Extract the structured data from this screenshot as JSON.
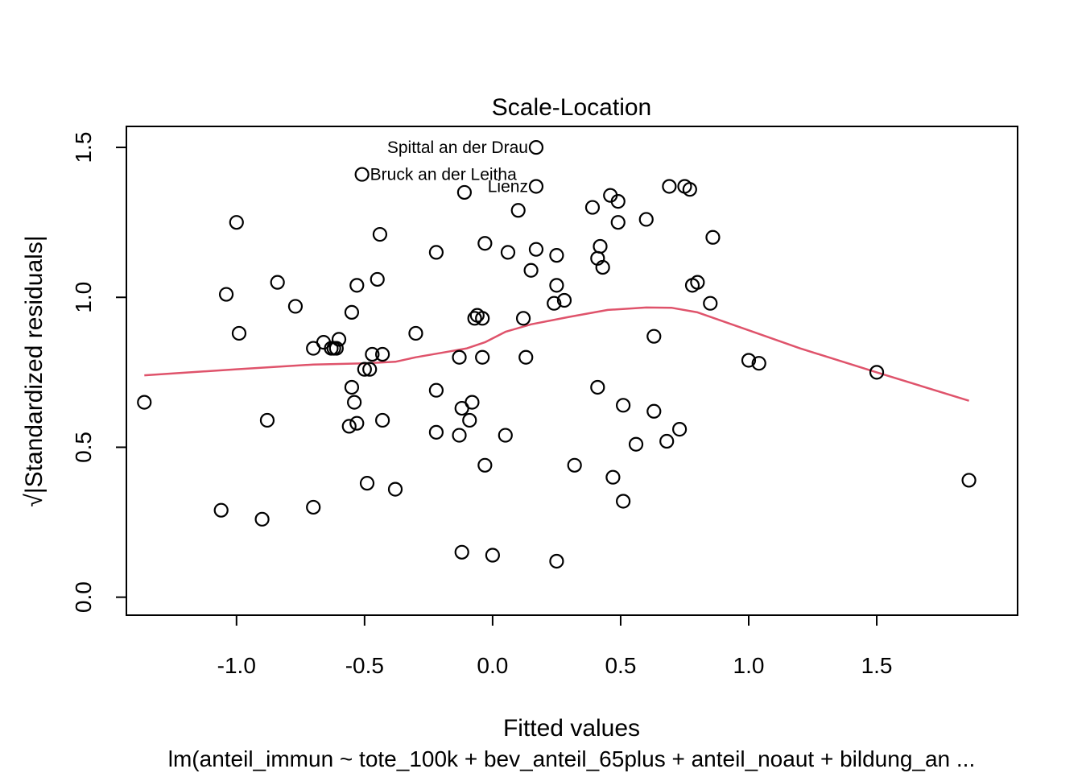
{
  "chart_data": {
    "type": "scatter",
    "title": "Scale-Location",
    "xlabel": "Fitted values",
    "ylabel": "√|Standardized residuals|",
    "subtitle": "lm(anteil_immun ~ tote_100k + bev_anteil_65plus + anteil_noaut + bildung_an ...",
    "xlim": [
      -1.43,
      2.05
    ],
    "ylim": [
      -0.06,
      1.57
    ],
    "xticks": [
      -1.0,
      -0.5,
      0.0,
      0.5,
      1.0,
      1.5
    ],
    "xtick_labels": [
      "-1.0",
      "-0.5",
      "0.0",
      "0.5",
      "1.0",
      "1.5"
    ],
    "yticks": [
      0.0,
      0.5,
      1.0,
      1.5
    ],
    "ytick_labels": [
      "0.0",
      "0.5",
      "1.0",
      "1.5"
    ],
    "grid": false,
    "points": [
      {
        "x": -1.36,
        "y": 0.65
      },
      {
        "x": -1.06,
        "y": 0.29
      },
      {
        "x": -1.04,
        "y": 1.01
      },
      {
        "x": -1.0,
        "y": 1.25
      },
      {
        "x": -0.99,
        "y": 0.88
      },
      {
        "x": -0.9,
        "y": 0.26
      },
      {
        "x": -0.88,
        "y": 0.59
      },
      {
        "x": -0.84,
        "y": 1.05
      },
      {
        "x": -0.77,
        "y": 0.97
      },
      {
        "x": -0.7,
        "y": 0.83
      },
      {
        "x": -0.7,
        "y": 0.3
      },
      {
        "x": -0.66,
        "y": 0.85
      },
      {
        "x": -0.63,
        "y": 0.83
      },
      {
        "x": -0.62,
        "y": 0.83
      },
      {
        "x": -0.61,
        "y": 0.83
      },
      {
        "x": -0.6,
        "y": 0.86
      },
      {
        "x": -0.56,
        "y": 0.57
      },
      {
        "x": -0.55,
        "y": 0.95
      },
      {
        "x": -0.55,
        "y": 0.7
      },
      {
        "x": -0.54,
        "y": 0.65
      },
      {
        "x": -0.53,
        "y": 0.58
      },
      {
        "x": -0.53,
        "y": 1.04
      },
      {
        "x": -0.51,
        "y": 1.41
      },
      {
        "x": -0.5,
        "y": 0.76
      },
      {
        "x": -0.49,
        "y": 0.38
      },
      {
        "x": -0.48,
        "y": 0.76
      },
      {
        "x": -0.47,
        "y": 0.81
      },
      {
        "x": -0.45,
        "y": 1.06
      },
      {
        "x": -0.44,
        "y": 1.21
      },
      {
        "x": -0.43,
        "y": 0.81
      },
      {
        "x": -0.43,
        "y": 0.59
      },
      {
        "x": -0.38,
        "y": 0.36
      },
      {
        "x": -0.3,
        "y": 0.88
      },
      {
        "x": -0.22,
        "y": 1.15
      },
      {
        "x": -0.22,
        "y": 0.69
      },
      {
        "x": -0.22,
        "y": 0.55
      },
      {
        "x": -0.13,
        "y": 0.8
      },
      {
        "x": -0.13,
        "y": 0.54
      },
      {
        "x": -0.12,
        "y": 0.63
      },
      {
        "x": -0.12,
        "y": 0.15
      },
      {
        "x": -0.11,
        "y": 1.35
      },
      {
        "x": -0.09,
        "y": 0.59
      },
      {
        "x": -0.08,
        "y": 0.65
      },
      {
        "x": -0.07,
        "y": 0.93
      },
      {
        "x": -0.06,
        "y": 0.94
      },
      {
        "x": -0.04,
        "y": 0.93
      },
      {
        "x": -0.04,
        "y": 0.8
      },
      {
        "x": -0.03,
        "y": 1.18
      },
      {
        "x": -0.03,
        "y": 0.44
      },
      {
        "x": 0.0,
        "y": 0.14
      },
      {
        "x": 0.05,
        "y": 0.54
      },
      {
        "x": 0.06,
        "y": 1.15
      },
      {
        "x": 0.1,
        "y": 1.29
      },
      {
        "x": 0.12,
        "y": 0.93
      },
      {
        "x": 0.13,
        "y": 0.8
      },
      {
        "x": 0.15,
        "y": 1.09
      },
      {
        "x": 0.17,
        "y": 1.5
      },
      {
        "x": 0.17,
        "y": 1.37
      },
      {
        "x": 0.17,
        "y": 1.16
      },
      {
        "x": 0.24,
        "y": 0.98
      },
      {
        "x": 0.25,
        "y": 1.14
      },
      {
        "x": 0.25,
        "y": 1.04
      },
      {
        "x": 0.25,
        "y": 0.12
      },
      {
        "x": 0.28,
        "y": 0.99
      },
      {
        "x": 0.32,
        "y": 0.44
      },
      {
        "x": 0.39,
        "y": 1.3
      },
      {
        "x": 0.41,
        "y": 1.13
      },
      {
        "x": 0.41,
        "y": 0.7
      },
      {
        "x": 0.42,
        "y": 1.17
      },
      {
        "x": 0.43,
        "y": 1.1
      },
      {
        "x": 0.46,
        "y": 1.34
      },
      {
        "x": 0.47,
        "y": 0.4
      },
      {
        "x": 0.49,
        "y": 1.32
      },
      {
        "x": 0.49,
        "y": 1.25
      },
      {
        "x": 0.51,
        "y": 0.64
      },
      {
        "x": 0.51,
        "y": 0.32
      },
      {
        "x": 0.56,
        "y": 0.51
      },
      {
        "x": 0.6,
        "y": 1.26
      },
      {
        "x": 0.63,
        "y": 0.87
      },
      {
        "x": 0.63,
        "y": 0.62
      },
      {
        "x": 0.68,
        "y": 0.52
      },
      {
        "x": 0.69,
        "y": 1.37
      },
      {
        "x": 0.73,
        "y": 0.56
      },
      {
        "x": 0.75,
        "y": 1.37
      },
      {
        "x": 0.77,
        "y": 1.36
      },
      {
        "x": 0.78,
        "y": 1.04
      },
      {
        "x": 0.8,
        "y": 1.05
      },
      {
        "x": 0.85,
        "y": 0.98
      },
      {
        "x": 0.86,
        "y": 1.2
      },
      {
        "x": 1.0,
        "y": 0.79
      },
      {
        "x": 1.04,
        "y": 0.78
      },
      {
        "x": 1.5,
        "y": 0.75
      },
      {
        "x": 1.86,
        "y": 0.39
      }
    ],
    "labeled_points": [
      {
        "label": "Spittal an der Drau",
        "x": 0.17,
        "y": 1.5,
        "pos": "left"
      },
      {
        "label": "Bruck an der Leitha",
        "x": -0.51,
        "y": 1.41,
        "pos": "right"
      },
      {
        "label": "Lienz",
        "x": 0.17,
        "y": 1.37,
        "pos": "left"
      }
    ],
    "smooth_line": {
      "name": "lowess",
      "color": "#DF536B",
      "x": [
        -1.36,
        -1.0,
        -0.7,
        -0.5,
        -0.38,
        -0.3,
        -0.2,
        -0.1,
        -0.03,
        0.05,
        0.15,
        0.3,
        0.45,
        0.6,
        0.7,
        0.8,
        0.9,
        1.0,
        1.2,
        1.5,
        1.86
      ],
      "y": [
        0.74,
        0.76,
        0.776,
        0.78,
        0.785,
        0.8,
        0.815,
        0.83,
        0.85,
        0.885,
        0.91,
        0.935,
        0.958,
        0.966,
        0.965,
        0.95,
        0.92,
        0.89,
        0.83,
        0.75,
        0.655
      ]
    }
  }
}
